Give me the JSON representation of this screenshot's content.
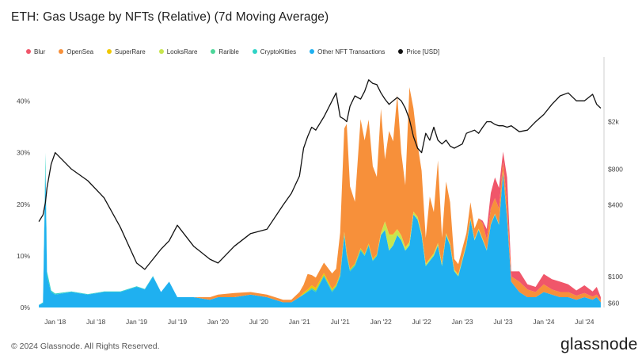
{
  "title": "ETH: Gas Usage by NFTs (Relative) (7d Moving Average)",
  "legend": [
    {
      "name": "Blur",
      "color": "#f0566a"
    },
    {
      "name": "OpenSea",
      "color": "#f7903a"
    },
    {
      "name": "SuperRare",
      "color": "#f0c800"
    },
    {
      "name": "LooksRare",
      "color": "#c7e54d"
    },
    {
      "name": "Rarible",
      "color": "#4cd69a"
    },
    {
      "name": "CryptoKitties",
      "color": "#2fd3c6"
    },
    {
      "name": "Other NFT Transactions",
      "color": "#1fb0f0"
    },
    {
      "name": "Price [USD]",
      "color": "#111111"
    }
  ],
  "chart_data": {
    "type": "area",
    "title": "ETH: Gas Usage by NFTs (Relative) (7d Moving Average)",
    "x_ticks": [
      "Jan '18",
      "Jul '18",
      "Jan '19",
      "Jul '19",
      "Jan '20",
      "Jul '20",
      "Jan '21",
      "Jul '21",
      "Jan '22",
      "Jul '22",
      "Jan '23",
      "Jul '23",
      "Jan '24",
      "Jul '24"
    ],
    "x_range": [
      2017.75,
      2024.73
    ],
    "y_left": {
      "ticks": [
        "0%",
        "10%",
        "20%",
        "30%",
        "40%"
      ],
      "range": [
        0,
        47
      ]
    },
    "y_right": {
      "scale": "log",
      "ticks": [
        "$60",
        "$100",
        "$400",
        "$800",
        "$2k"
      ],
      "tick_values": [
        60,
        100,
        400,
        800,
        2000
      ],
      "range": [
        55,
        6000
      ]
    },
    "x": [
      2017.8,
      2017.85,
      2017.88,
      2017.9,
      2017.95,
      2018.0,
      2018.2,
      2018.4,
      2018.6,
      2018.8,
      2019.0,
      2019.1,
      2019.2,
      2019.3,
      2019.4,
      2019.5,
      2019.7,
      2019.9,
      2020.0,
      2020.2,
      2020.4,
      2020.6,
      2020.8,
      2020.9,
      2021.0,
      2021.05,
      2021.1,
      2021.15,
      2021.2,
      2021.3,
      2021.4,
      2021.45,
      2021.5,
      2021.55,
      2021.58,
      2021.62,
      2021.68,
      2021.75,
      2021.8,
      2021.85,
      2021.9,
      2021.95,
      2022.0,
      2022.05,
      2022.1,
      2022.15,
      2022.2,
      2022.25,
      2022.3,
      2022.35,
      2022.4,
      2022.45,
      2022.5,
      2022.55,
      2022.6,
      2022.65,
      2022.7,
      2022.75,
      2022.8,
      2022.85,
      2022.9,
      2022.95,
      2023.0,
      2023.05,
      2023.1,
      2023.15,
      2023.2,
      2023.25,
      2023.3,
      2023.35,
      2023.4,
      2023.45,
      2023.5,
      2023.55,
      2023.6,
      2023.7,
      2023.8,
      2023.9,
      2024.0,
      2024.1,
      2024.2,
      2024.3,
      2024.4,
      2024.5,
      2024.6,
      2024.65,
      2024.7
    ],
    "series": [
      {
        "name": "Other NFT Transactions",
        "values": [
          0.5,
          0.8,
          27,
          6,
          3,
          2.5,
          3,
          2.5,
          3,
          3,
          4,
          3.5,
          6,
          3,
          5,
          2,
          2,
          1.5,
          2,
          2,
          2.5,
          2,
          1,
          1,
          2,
          2.5,
          3,
          3.5,
          3,
          6,
          3,
          4,
          6,
          14,
          10,
          7,
          8,
          11,
          10,
          12,
          9,
          10,
          14,
          15,
          11,
          12,
          14,
          13,
          11,
          12,
          18,
          17,
          14,
          8,
          9,
          10,
          12,
          8,
          14,
          12,
          7,
          6,
          9,
          12,
          17,
          13,
          15,
          13,
          11,
          16,
          18,
          16,
          26,
          17,
          5,
          3,
          2,
          2,
          3,
          2.5,
          2,
          2,
          1.5,
          2,
          1.5,
          2,
          1
        ]
      },
      {
        "name": "CryptoKitties",
        "values": [
          0,
          0.2,
          3,
          1,
          0.3,
          0.2,
          0.1,
          0.1,
          0.1,
          0.1,
          0.1,
          0.1,
          0.1,
          0,
          0,
          0,
          0,
          0,
          0,
          0,
          0,
          0,
          0,
          0,
          0,
          0,
          0,
          0,
          0,
          0,
          0,
          0,
          0,
          0,
          0,
          0,
          0,
          0,
          0,
          0,
          0,
          0,
          0,
          0,
          0,
          0,
          0,
          0,
          0,
          0,
          0,
          0,
          0,
          0,
          0,
          0,
          0,
          0,
          0,
          0,
          0,
          0,
          0,
          0,
          0,
          0,
          0,
          0,
          0,
          0,
          0,
          0,
          0,
          0,
          0,
          0,
          0,
          0,
          0,
          0,
          0,
          0,
          0,
          0,
          0,
          0,
          0
        ]
      },
      {
        "name": "Rarible",
        "values": [
          0,
          0,
          0,
          0,
          0,
          0,
          0,
          0,
          0,
          0,
          0,
          0,
          0,
          0,
          0,
          0,
          0,
          0,
          0,
          0,
          0,
          0,
          0,
          0,
          0,
          0.1,
          0.2,
          0.3,
          0.3,
          0.3,
          0.3,
          0.2,
          0.3,
          0.4,
          0.3,
          0.3,
          0.3,
          0.3,
          0.2,
          0.2,
          0.2,
          0.1,
          0.1,
          0.1,
          0.1,
          0.1,
          0.1,
          0.1,
          0.1,
          0.1,
          0.1,
          0.1,
          0.1,
          0.1,
          0.1,
          0.1,
          0.1,
          0.1,
          0.1,
          0.1,
          0.1,
          0.1,
          0.1,
          0.1,
          0.1,
          0.1,
          0.1,
          0.1,
          0.1,
          0.1,
          0.1,
          0.1,
          0.1,
          0.1,
          0,
          0,
          0,
          0,
          0,
          0,
          0,
          0,
          0,
          0,
          0,
          0,
          0
        ]
      },
      {
        "name": "LooksRare",
        "values": [
          0,
          0,
          0,
          0,
          0,
          0,
          0,
          0,
          0,
          0,
          0,
          0,
          0,
          0,
          0,
          0,
          0,
          0,
          0,
          0,
          0,
          0,
          0,
          0,
          0,
          0,
          0,
          0,
          0,
          0,
          0,
          0,
          0,
          0,
          0,
          0,
          0,
          0,
          0,
          0,
          0,
          0,
          0.3,
          1.5,
          3,
          2,
          1,
          0.8,
          0.5,
          0.5,
          0.4,
          0.4,
          0.3,
          0.3,
          0.3,
          0.3,
          0.3,
          0.3,
          0.2,
          0.2,
          0.2,
          0.2,
          0.2,
          0.2,
          0.2,
          0.1,
          0.1,
          0.1,
          0.1,
          0.1,
          0.1,
          0.1,
          0.1,
          0.1,
          0,
          0,
          0,
          0,
          0,
          0,
          0,
          0,
          0,
          0,
          0,
          0,
          0
        ]
      },
      {
        "name": "SuperRare",
        "values": [
          0,
          0,
          0,
          0,
          0,
          0,
          0,
          0,
          0,
          0,
          0,
          0,
          0,
          0,
          0,
          0,
          0,
          0,
          0,
          0,
          0,
          0,
          0,
          0,
          0,
          0.3,
          0.3,
          0.5,
          0.5,
          0.4,
          0.3,
          0.3,
          0.2,
          0.3,
          0.3,
          0.2,
          0.2,
          0.2,
          0.2,
          0.2,
          0.2,
          0.2,
          0.1,
          0.1,
          0.1,
          0.1,
          0.1,
          0.1,
          0.1,
          0.1,
          0.1,
          0.1,
          0.1,
          0.1,
          0.1,
          0.1,
          0.1,
          0.1,
          0.1,
          0.1,
          0.1,
          0.1,
          0.1,
          0.1,
          0.1,
          0.1,
          0.1,
          0.1,
          0,
          0,
          0,
          0,
          0,
          0,
          0,
          0,
          0,
          0,
          0,
          0,
          0,
          0,
          0,
          0,
          0,
          0,
          0
        ]
      },
      {
        "name": "OpenSea",
        "values": [
          0,
          0,
          0,
          0,
          0,
          0,
          0,
          0,
          0,
          0,
          0,
          0,
          0,
          0,
          0,
          0,
          0,
          0.5,
          0.5,
          0.8,
          0.5,
          0.5,
          0.5,
          0.5,
          1,
          1.5,
          3,
          2,
          2,
          2,
          3,
          3,
          8,
          20,
          25,
          16,
          12,
          25,
          22,
          24,
          18,
          15,
          24,
          12,
          20,
          18,
          26,
          16,
          12,
          30,
          20,
          14,
          12,
          5,
          12,
          8,
          16,
          5,
          10,
          8,
          2,
          2,
          2,
          2,
          3,
          2,
          2,
          3,
          2,
          3,
          3,
          3,
          2,
          3,
          1,
          2,
          1.5,
          1,
          1.5,
          1,
          1,
          1,
          0.8,
          0.8,
          0.6,
          0.5,
          0.5
        ]
      },
      {
        "name": "Blur",
        "values": [
          0,
          0,
          0,
          0,
          0,
          0,
          0,
          0,
          0,
          0,
          0,
          0,
          0,
          0,
          0,
          0,
          0,
          0,
          0,
          0,
          0,
          0,
          0,
          0,
          0,
          0,
          0,
          0,
          0,
          0,
          0,
          0,
          0,
          0,
          0,
          0,
          0,
          0,
          0,
          0,
          0,
          0,
          0,
          0,
          0,
          0,
          0,
          0,
          0,
          0,
          0,
          0,
          0,
          0,
          0,
          0,
          0,
          0,
          0,
          0,
          0,
          0,
          0,
          0,
          0,
          0,
          0,
          0.5,
          2,
          3,
          4,
          4,
          2,
          5,
          1,
          2,
          1,
          1,
          2,
          2,
          2,
          1.5,
          1,
          1.5,
          1,
          1.5,
          0.5
        ]
      },
      {
        "name": "Price [USD]",
        "axis": "right",
        "values": [
          290,
          330,
          420,
          560,
          880,
          1100,
          800,
          640,
          460,
          260,
          130,
          115,
          140,
          170,
          200,
          270,
          180,
          140,
          130,
          180,
          230,
          250,
          400,
          500,
          700,
          1200,
          1500,
          1800,
          1700,
          2200,
          3000,
          3500,
          2200,
          2100,
          2000,
          2700,
          3300,
          3100,
          3600,
          4500,
          4200,
          4100,
          3500,
          3100,
          2800,
          3000,
          3200,
          3000,
          2600,
          2100,
          1500,
          1200,
          1100,
          1600,
          1400,
          1800,
          1400,
          1300,
          1400,
          1250,
          1200,
          1250,
          1300,
          1600,
          1650,
          1700,
          1600,
          1800,
          2000,
          2000,
          1900,
          1850,
          1850,
          1800,
          1850,
          1650,
          1700,
          2000,
          2300,
          2800,
          3300,
          3500,
          3000,
          3000,
          3400,
          2800,
          2600
        ]
      }
    ]
  },
  "footer": {
    "copyright": "© 2024 Glassnode. All Rights Reserved.",
    "logo": "glassnode"
  }
}
